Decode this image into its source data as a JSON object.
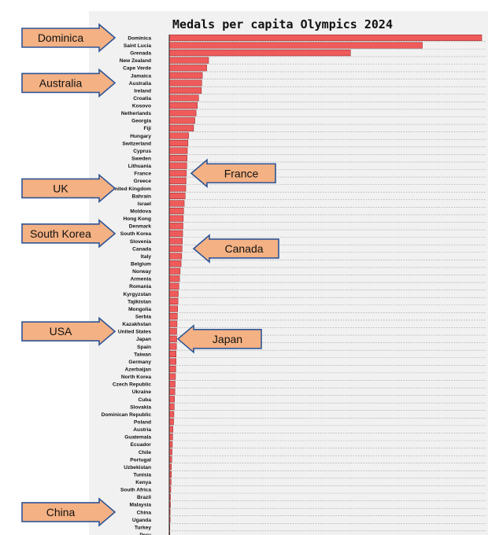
{
  "chart_data": {
    "type": "bar",
    "orientation": "horizontal",
    "title": "Medals per capita Olympics 2024",
    "categories": [
      "Dominica",
      "Saint Lucia",
      "Grenada",
      "New Zealand",
      "Cape Verde",
      "Jamaica",
      "Australia",
      "Ireland",
      "Croatia",
      "Kosovo",
      "Netherlands",
      "Georgia",
      "Fiji",
      "Hungary",
      "Switzerland",
      "Cyprus",
      "Sweden",
      "Lithuania",
      "France",
      "Greece",
      "United Kingdom",
      "Bahrain",
      "Israel",
      "Moldova",
      "Hong Kong",
      "Denmark",
      "South Korea",
      "Slovenia",
      "Canada",
      "Italy",
      "Belgium",
      "Norway",
      "Armenia",
      "Romania",
      "Kyrgyzstan",
      "Tajikistan",
      "Mongolia",
      "Serbia",
      "Kazakhstan",
      "United States",
      "Japan",
      "Spain",
      "Taiwan",
      "Germany",
      "Azerbaijan",
      "North Korea",
      "Czech Republic",
      "Ukraine",
      "Cuba",
      "Slovakia",
      "Dominican Republic",
      "Poland",
      "Austria",
      "Guatemala",
      "Ecuador",
      "Chile",
      "Portugal",
      "Uzbekistan",
      "Tunisia",
      "Kenya",
      "South Africa",
      "Brazil",
      "Malaysia",
      "China",
      "Uganda",
      "Turkey",
      "Peru"
    ],
    "values": [
      100,
      81,
      58,
      12.6,
      12,
      10.6,
      10.4,
      10.3,
      9.4,
      9,
      8.6,
      8.2,
      7.8,
      6.2,
      6,
      5.8,
      5.7,
      5.6,
      5.5,
      5.4,
      5.3,
      5.1,
      4.8,
      4.6,
      4.5,
      4.4,
      4.3,
      4.2,
      4.1,
      4,
      3.8,
      3.5,
      3.3,
      3.1,
      2.9,
      2.8,
      2.7,
      2.6,
      2.5,
      2.4,
      2.4,
      2.3,
      2.2,
      2.2,
      2.1,
      2,
      1.9,
      1.8,
      1.7,
      1.6,
      1.5,
      1.4,
      1.2,
      1.1,
      1,
      0.9,
      0.8,
      0.7,
      0.7,
      0.6,
      0.5,
      0.4,
      0.4,
      0.3,
      0.3,
      0.2,
      0.2
    ],
    "xlim": [
      0,
      100
    ],
    "grid": true,
    "bar_color": "#ef5b5b"
  },
  "callouts": [
    {
      "label": "Dominica",
      "target": "Dominica",
      "direction": "right"
    },
    {
      "label": "Australia",
      "target": "Australia",
      "direction": "right"
    },
    {
      "label": "France",
      "target": "France",
      "direction": "left"
    },
    {
      "label": "UK",
      "target": "United Kingdom",
      "direction": "right"
    },
    {
      "label": "South Korea",
      "target": "South Korea",
      "direction": "right"
    },
    {
      "label": "Canada",
      "target": "Canada",
      "direction": "left"
    },
    {
      "label": "USA",
      "target": "United States",
      "direction": "right"
    },
    {
      "label": "Japan",
      "target": "Japan",
      "direction": "left"
    },
    {
      "label": "China",
      "target": "China",
      "direction": "right"
    }
  ],
  "colors": {
    "callout_fill": "#f4b183",
    "callout_border": "#2e5597",
    "panel_background": "#f1f1f1"
  }
}
